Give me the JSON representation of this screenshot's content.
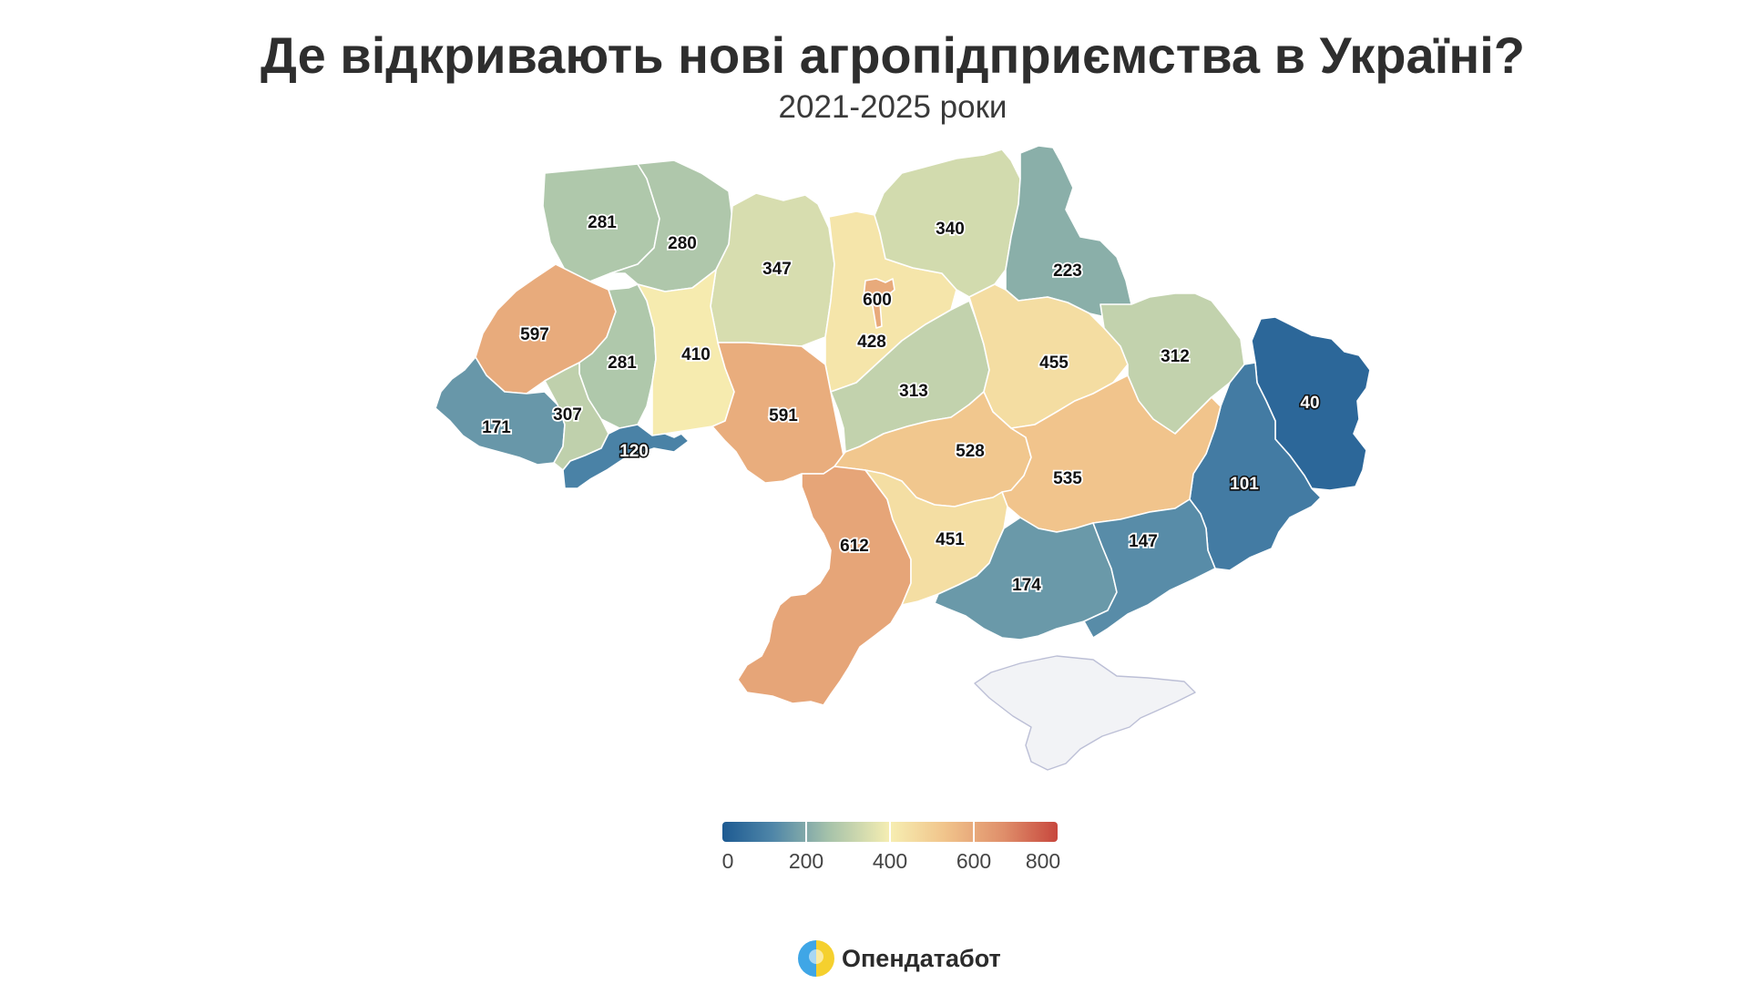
{
  "title": "Де відкривають нові агропідприємства в Україні?",
  "subtitle": "2021-2025 роки",
  "brand": {
    "name": "Опендатабот",
    "logo_icon": "opendatabot-logo-icon"
  },
  "map": {
    "scale": {
      "min": 0,
      "max": 800,
      "ticks": [
        "0",
        "200",
        "400",
        "600",
        "800"
      ],
      "colors": [
        "#1d5a92",
        "#4f86a8",
        "#a7c3aa",
        "#f6eeb2",
        "#f1c58c",
        "#df8e6a",
        "#c7473d"
      ]
    },
    "no_data_color": "#f2f3f6",
    "regions": [
      {
        "id": "volyn",
        "value": 281
      },
      {
        "id": "rivne",
        "value": 280
      },
      {
        "id": "zhytomyr",
        "value": 347
      },
      {
        "id": "kyiv-oblast",
        "value": 428
      },
      {
        "id": "kyiv-city",
        "value": 600
      },
      {
        "id": "chernihiv",
        "value": 340
      },
      {
        "id": "sumy",
        "value": 223
      },
      {
        "id": "lviv",
        "value": 597
      },
      {
        "id": "ternopil",
        "value": 281
      },
      {
        "id": "khmelnytskyi",
        "value": 410
      },
      {
        "id": "zakarpattia",
        "value": 171
      },
      {
        "id": "ivano-frankivsk",
        "value": 307
      },
      {
        "id": "chernivtsi",
        "value": 120
      },
      {
        "id": "vinnytsia",
        "value": 591
      },
      {
        "id": "cherkasy",
        "value": 313
      },
      {
        "id": "poltava",
        "value": 455
      },
      {
        "id": "kharkiv",
        "value": 312
      },
      {
        "id": "luhansk",
        "value": 40
      },
      {
        "id": "donetsk",
        "value": 101
      },
      {
        "id": "kirovohrad",
        "value": 528
      },
      {
        "id": "dnipropetrovsk",
        "value": 535
      },
      {
        "id": "odesa",
        "value": 612
      },
      {
        "id": "mykolaiv",
        "value": 451
      },
      {
        "id": "kherson",
        "value": 174
      },
      {
        "id": "zaporizhzhia",
        "value": 147
      }
    ]
  }
}
